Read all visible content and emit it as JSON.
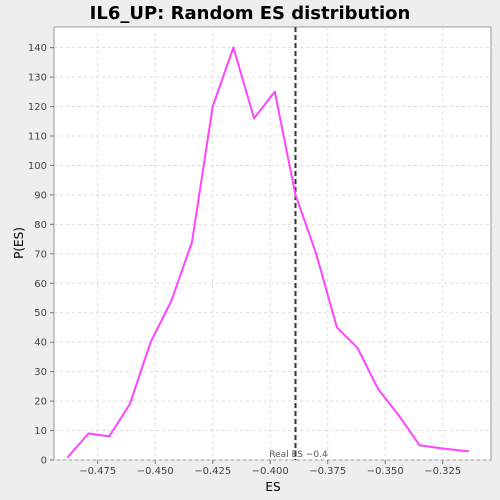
{
  "chart_data": {
    "type": "line",
    "title": "IL6_UP: Random ES distribution",
    "xlabel": "ES",
    "ylabel": "P(ES)",
    "xlim": [
      -0.494,
      -0.304
    ],
    "ylim": [
      0,
      147
    ],
    "x_ticks": [
      -0.475,
      -0.45,
      -0.425,
      -0.4,
      -0.375,
      -0.35,
      -0.325
    ],
    "x_tick_labels": [
      "−0.475",
      "−0.450",
      "−0.425",
      "−0.400",
      "−0.375",
      "−0.350",
      "−0.325"
    ],
    "y_ticks": [
      0,
      10,
      20,
      30,
      40,
      50,
      60,
      70,
      80,
      90,
      100,
      110,
      120,
      130,
      140
    ],
    "y_tick_labels": [
      "0",
      "10",
      "20",
      "30",
      "40",
      "50",
      "60",
      "70",
      "80",
      "90",
      "100",
      "110",
      "120",
      "130",
      "140"
    ],
    "grid": true,
    "series": [
      {
        "color": "#ff44ff",
        "x": [
          -0.488,
          -0.479,
          -0.47,
          -0.461,
          -0.452,
          -0.443,
          -0.434,
          -0.425,
          -0.416,
          -0.407,
          -0.398,
          -0.389,
          -0.38,
          -0.371,
          -0.362,
          -0.353,
          -0.344,
          -0.335,
          -0.326,
          -0.314
        ],
        "y": [
          1,
          9,
          8,
          19,
          40,
          54,
          74,
          120,
          140,
          116,
          125,
          90,
          70,
          45,
          38,
          24,
          15,
          5,
          4,
          3
        ]
      }
    ],
    "reference_line": {
      "x": -0.389,
      "label": "Real ES −0.4",
      "color": "#333333"
    }
  }
}
